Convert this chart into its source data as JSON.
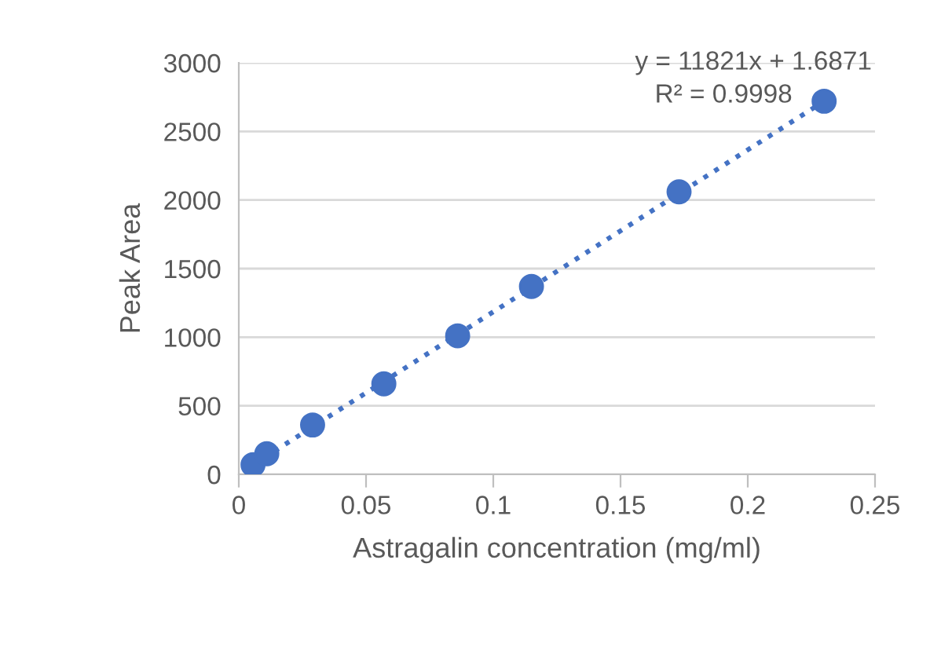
{
  "chart_data": {
    "type": "scatter",
    "xlabel": "Astragalin concentration (mg/ml)",
    "ylabel": "Peak Area",
    "series": [
      {
        "color": "#4472c4",
        "x": [
          0.0056,
          0.011,
          0.029,
          0.057,
          0.086,
          0.115,
          0.173,
          0.23
        ],
        "values": [
          70,
          150,
          360,
          660,
          1010,
          1370,
          2060,
          2720
        ],
        "marker": "circle"
      },
      {
        "type": "line",
        "color": "#4472c4",
        "x": [
          0.0056,
          0.23
        ],
        "values": [
          70,
          2720
        ],
        "line_style": "dotted"
      }
    ],
    "annotations": [
      "y = 11821x + 1.6871",
      "R² = 0.9998"
    ],
    "xlim": [
      0,
      0.25
    ],
    "xticks": [
      0,
      0.05,
      0.1,
      0.15,
      0.2,
      0.25
    ],
    "ylim": [
      0,
      3000
    ],
    "yticks": [
      0,
      500,
      1000,
      1500,
      2000,
      2500,
      3000
    ],
    "grid": "y",
    "legend": false
  }
}
